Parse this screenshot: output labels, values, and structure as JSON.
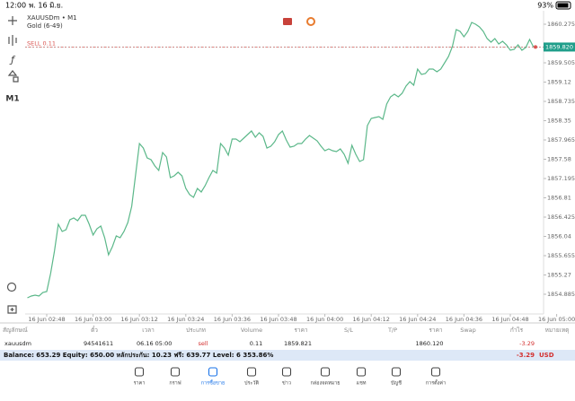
{
  "status_bar": {
    "time": "12:00",
    "date": "พ. 16 มิ.ย.",
    "battery": "93%"
  },
  "chart_header": {
    "symbol": "XAUUSDm • M1",
    "description": "Gold (6-49)"
  },
  "toolbar": {
    "timeframe": "M1"
  },
  "chart_data": {
    "type": "line",
    "categories": [
      null,
      null,
      null,
      null,
      null,
      "16 Jun 02:48",
      null,
      null,
      null,
      null,
      null,
      null,
      null,
      null,
      null,
      null,
      null,
      "16 Jun 03:00",
      null,
      null,
      null,
      null,
      null,
      null,
      null,
      null,
      null,
      null,
      null,
      "16 Jun 03:12",
      null,
      null,
      null,
      null,
      null,
      null,
      null,
      null,
      null,
      null,
      null,
      "16 Jun 03:24",
      null,
      null,
      null,
      null,
      null,
      null,
      null,
      null,
      null,
      null,
      null,
      "16 Jun 03:36",
      null,
      null,
      null,
      null,
      null,
      null,
      null,
      null,
      null,
      null,
      null,
      "16 Jun 03:48",
      null,
      null,
      null,
      null,
      null,
      null,
      null,
      null,
      null,
      null,
      null,
      "16 Jun 04:00",
      null,
      null,
      null,
      null,
      null,
      null,
      null,
      null,
      null,
      null,
      null,
      "16 Jun 04:12",
      null,
      null,
      null,
      null,
      null,
      null,
      null,
      null,
      null,
      null,
      null,
      "16 Jun 04:24",
      null,
      null,
      null,
      null,
      null,
      null,
      null,
      null,
      null,
      null,
      null,
      "16 Jun 04:36",
      null,
      null,
      null,
      null,
      null,
      null,
      null,
      null,
      null,
      null,
      null,
      "16 Jun 04:48",
      null,
      null,
      null,
      null,
      null,
      null,
      null,
      null,
      null,
      null,
      null,
      "16 Jun 05:00"
    ],
    "series": [
      {
        "color": "#5cb88a",
        "values": [
          1854.813,
          1854.849,
          1854.867,
          1854.849,
          1854.921,
          1854.939,
          1855.297,
          1855.745,
          1856.282,
          1856.139,
          1856.174,
          1856.371,
          1856.407,
          1856.353,
          1856.461,
          1856.461,
          1856.282,
          1856.067,
          1856.192,
          1856.246,
          1856.013,
          1855.673,
          1855.834,
          1856.049,
          1856.013,
          1856.139,
          1856.318,
          1856.64,
          1857.267,
          1857.894,
          1857.804,
          1857.607,
          1857.571,
          1857.446,
          1857.356,
          1857.714,
          1857.625,
          1857.213,
          1857.249,
          1857.32,
          1857.249,
          1856.998,
          1856.873,
          1856.819,
          1856.998,
          1856.927,
          1857.052,
          1857.213,
          1857.356,
          1857.303,
          1857.894,
          1857.804,
          1857.661,
          1857.983,
          1857.983,
          1857.929,
          1858.001,
          1858.073,
          1858.144,
          1858.019,
          1858.108,
          1858.037,
          1857.804,
          1857.84,
          1857.929,
          1858.073,
          1858.144,
          1857.965,
          1857.822,
          1857.84,
          1857.894,
          1857.894,
          1857.983,
          1858.055,
          1858.001,
          1857.947,
          1857.84,
          1857.75,
          1857.786,
          1857.75,
          1857.732,
          1857.786,
          1857.679,
          1857.5,
          1857.858,
          1857.679,
          1857.535,
          1857.571,
          1858.252,
          1858.395,
          1858.413,
          1858.431,
          1858.377,
          1858.681,
          1858.825,
          1858.878,
          1858.825,
          1858.896,
          1859.04,
          1859.129,
          1859.057,
          1859.38,
          1859.272,
          1859.29,
          1859.38,
          1859.38,
          1859.326,
          1859.38,
          1859.505,
          1859.631,
          1859.828,
          1860.168,
          1860.132,
          1860.025,
          1860.132,
          1860.311,
          1860.275,
          1860.222,
          1860.132,
          1859.989,
          1859.917,
          1859.989,
          1859.881,
          1859.935,
          1859.863,
          1859.756,
          1859.774,
          1859.863,
          1859.756,
          1859.81,
          1859.971,
          1859.82,
          null,
          null,
          null,
          null,
          null,
          null
        ]
      }
    ],
    "ylim": [
      1854.491,
      1860.544
    ],
    "yticks": [
      1854.885,
      1855.27,
      1855.655,
      1856.04,
      1856.425,
      1856.81,
      1857.195,
      1857.58,
      1857.965,
      1858.35,
      1858.735,
      1859.12,
      1859.505,
      1860.275
    ],
    "current_price": {
      "value": 1859.82,
      "label": "1859.820"
    },
    "order_line": {
      "value": 1859.821,
      "label": "SELL 0.11"
    }
  },
  "table": {
    "headers": [
      "สัญลักษณ์",
      "ตั๋ว",
      "เวลา",
      "ประเภท",
      "Volume",
      "ราคา",
      "S/L",
      "T/P",
      "ราคา",
      "Swap",
      "กำไร",
      "หมายเหตุ"
    ],
    "row": {
      "symbol": "xauusdm",
      "ticket": "94541611",
      "time": "06.16 05:00",
      "type": "sell",
      "volume": "0.11",
      "price": "1859.821",
      "current_price": "1860.120",
      "profit": "-3.29"
    }
  },
  "summary": {
    "text": "Balance: 653.29 Equity: 650.00 หลักประกัน: 10.23 ฟรี: 639.77 Level: 6 353.86%",
    "profit": "-3.29",
    "currency": "USD"
  },
  "tabs": [
    "ราคา",
    "กราฟ",
    "การซื้อขาย",
    "ประวัติ",
    "ข่าว",
    "กล่องจดหมาย",
    "แชท",
    "บัญชี",
    "การตั้งค่า"
  ]
}
